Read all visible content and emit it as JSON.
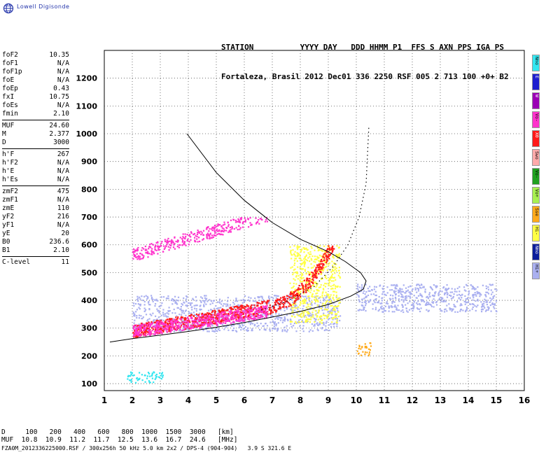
{
  "logo": {
    "text": "Lowell Digisonde",
    "icon": "globe-icon"
  },
  "header": {
    "line1": "STATION          YYYY DAY   DDD HHMM P1  FFS S AXN PPS IGA PS",
    "line2": "Fortaleza, Brasil 2012 Dec01 336 2250 RSF 005 2 713 100 +0+ B2"
  },
  "params": {
    "group1": [
      {
        "name": "foF2",
        "value": "10.35"
      },
      {
        "name": "foF1",
        "value": "N/A"
      },
      {
        "name": "foF1p",
        "value": "N/A"
      },
      {
        "name": "foE",
        "value": "N/A"
      },
      {
        "name": "foEp",
        "value": "0.43"
      },
      {
        "name": "fxI",
        "value": "10.75"
      },
      {
        "name": "foEs",
        "value": "N/A"
      },
      {
        "name": "fmin",
        "value": "2.10"
      }
    ],
    "group2": [
      {
        "name": "MUF",
        "value": "24.60"
      },
      {
        "name": "M",
        "value": "2.377"
      },
      {
        "name": "D",
        "value": "3000"
      }
    ],
    "group3": [
      {
        "name": "h'F",
        "value": "267"
      },
      {
        "name": "h'F2",
        "value": "N/A"
      },
      {
        "name": "h'E",
        "value": "N/A"
      },
      {
        "name": "h'Es",
        "value": "N/A"
      }
    ],
    "group4": [
      {
        "name": "zmF2",
        "value": "475"
      },
      {
        "name": "zmF1",
        "value": "N/A"
      },
      {
        "name": "zmE",
        "value": "110"
      },
      {
        "name": "yF2",
        "value": "216"
      },
      {
        "name": "yF1",
        "value": "N/A"
      },
      {
        "name": "yE",
        "value": "20"
      },
      {
        "name": "B0",
        "value": "236.6"
      },
      {
        "name": "B1",
        "value": "2.10"
      }
    ],
    "group5": [
      {
        "name": "C-level",
        "value": "11"
      }
    ]
  },
  "muf_table": {
    "line1": "D     100   200   400   600   800  1000  1500  3000   [km]",
    "line2": "MUF  10.8  10.9  11.2  11.7  12.5  13.6  16.7  24.6   [MHz]"
  },
  "footer": "FZA0M_2012336225000.RSF / 300x256h 50 kHz 5.0 km 2x2 / DPS-4 (904-904)   3.9 S 321.6 E",
  "legend": [
    {
      "label": "Nno",
      "color": "#33e6f0"
    },
    {
      "label": "E",
      "color": "#1f1fcf"
    },
    {
      "label": "W",
      "color": "#9b00b5"
    },
    {
      "label": "Vo-",
      "color": "#ff33cc"
    },
    {
      "label": "X0",
      "color": "#ff1a1a"
    },
    {
      "label": "Swo",
      "color": "#ffaaaa"
    },
    {
      "label": "Vo-",
      "color": "#20a020"
    },
    {
      "label": "Vo+",
      "color": "#a8f050"
    },
    {
      "label": "Sse",
      "color": "#ffaa1a"
    },
    {
      "label": "Hi-",
      "color": "#ffff44"
    },
    {
      "label": "Nmo",
      "color": "#0b1d9c"
    },
    {
      "label": "Hi+",
      "color": "#aab0f0"
    }
  ],
  "chart_data": {
    "type": "scatter",
    "title": "",
    "xlabel": "",
    "ylabel": "",
    "xlim": [
      1,
      16
    ],
    "ylim": [
      75,
      1300
    ],
    "x_ticks": [
      1,
      2,
      3,
      4,
      5,
      6,
      7,
      8,
      9,
      10,
      11,
      12,
      13,
      14,
      15,
      16
    ],
    "y_ticks": [
      100,
      200,
      300,
      400,
      500,
      600,
      700,
      800,
      900,
      1000,
      1100,
      1200
    ],
    "grid": true,
    "series": [
      {
        "name": "",
        "kind": "profile-curve",
        "points": [
          [
            3.95,
            1000
          ],
          [
            5.0,
            860
          ],
          [
            6.0,
            760
          ],
          [
            7.0,
            680
          ],
          [
            8.0,
            620
          ],
          [
            9.0,
            575
          ],
          [
            9.6,
            540
          ],
          [
            10.15,
            500
          ],
          [
            10.35,
            470
          ],
          [
            10.25,
            440
          ],
          [
            9.8,
            415
          ],
          [
            9.0,
            385
          ],
          [
            8.0,
            360
          ],
          [
            7.0,
            340
          ],
          [
            6.0,
            320
          ],
          [
            5.0,
            303
          ],
          [
            4.0,
            288
          ],
          [
            3.0,
            275
          ],
          [
            2.0,
            262
          ],
          [
            1.2,
            250
          ]
        ]
      },
      {
        "name": "",
        "kind": "trace-extrapolation",
        "points": [
          [
            6.6,
            365
          ],
          [
            7.5,
            395
          ],
          [
            8.5,
            450
          ],
          [
            9.2,
            525
          ],
          [
            9.7,
            600
          ],
          [
            10.1,
            700
          ],
          [
            10.35,
            820
          ],
          [
            10.45,
            1030
          ]
        ]
      }
    ],
    "echo_regions": [
      {
        "class": "Hi+",
        "x": [
          2.0,
          9.4
        ],
        "y": [
          290,
          420
        ]
      },
      {
        "class": "Hi-",
        "x": [
          7.6,
          9.4
        ],
        "y": [
          320,
          600
        ]
      },
      {
        "class": "X0",
        "x": [
          2.0,
          9.2
        ],
        "y": [
          270,
          600
        ]
      },
      {
        "class": "Vo-",
        "x": [
          2.0,
          6.8
        ],
        "y": [
          270,
          700
        ]
      },
      {
        "class": "Nno",
        "x": [
          1.8,
          3.1
        ],
        "y": [
          105,
          145
        ]
      },
      {
        "class": "Hi+",
        "x": [
          10.0,
          15.0
        ],
        "y": [
          360,
          460
        ]
      },
      {
        "class": "Sse",
        "x": [
          10.0,
          10.5
        ],
        "y": [
          200,
          250
        ]
      }
    ]
  }
}
